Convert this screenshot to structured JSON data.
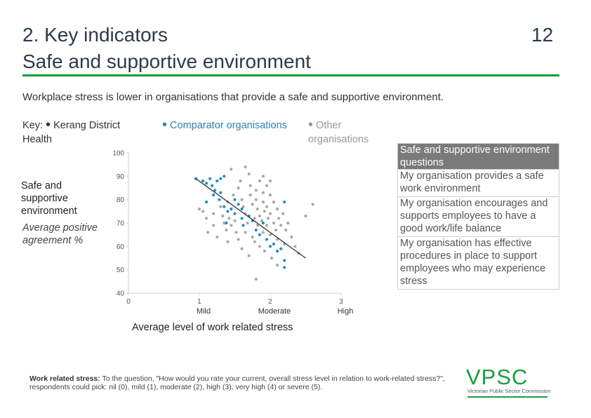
{
  "header": {
    "title_line1": "2. Key indicators",
    "title_line2": "Safe and supportive environment",
    "page_number": "12",
    "subtitle": "Workplace stress is lower in organisations that provide a safe and supportive environment."
  },
  "key": {
    "label": "Key:",
    "bullet": "•",
    "items": [
      {
        "text": "Kerang District Health",
        "color": "#333333"
      },
      {
        "text": "Comparator organisations",
        "color": "#2f7fb0"
      },
      {
        "text": "Other organisations",
        "color": "#999999"
      }
    ]
  },
  "y_axis_label": {
    "title": "Safe and supportive environment",
    "subtitle": "Average positive agreement %"
  },
  "x_axis_label": "Average level of work related stress",
  "questions": {
    "header": "Safe and supportive environment questions",
    "items": [
      "My organisation provides a safe work environment",
      "My organisation encourages and supports employees to have a good work/life balance",
      "My organisation has effective procedures in place to support employees who may experience stress"
    ]
  },
  "footnote": {
    "bold": "Work related stress:",
    "text": " To the question, \"How would you rate your current, overall stress level in relation to work-related stress?\", respondents could pick: nil (0), mild (1), moderate (2), high (3), very high (4) or severe (5)."
  },
  "logo": {
    "text": "VPSC",
    "caption": "Victorian Public Sector Commission",
    "color": "#1a9e3c"
  },
  "chart_data": {
    "type": "scatter",
    "xlim": [
      0,
      3
    ],
    "ylim": [
      40,
      100
    ],
    "x_ticks": [
      0,
      1,
      2,
      3
    ],
    "y_ticks": [
      40,
      50,
      60,
      70,
      80,
      90,
      100
    ],
    "x_category_labels": [
      {
        "x": 1,
        "label": "Mild"
      },
      {
        "x": 2,
        "label": "Moderate"
      },
      {
        "x": 3,
        "label": "High"
      }
    ],
    "grid": false,
    "trendline": {
      "x": [
        0.95,
        2.5
      ],
      "y": [
        89,
        55
      ],
      "color": "#333333"
    },
    "series": [
      {
        "color": "#1d8fc4",
        "points": [
          [
            0.95,
            89
          ],
          [
            1.05,
            88
          ],
          [
            1.1,
            87
          ],
          [
            1.15,
            89
          ],
          [
            1.18,
            86
          ],
          [
            1.22,
            84
          ],
          [
            1.25,
            88
          ],
          [
            1.3,
            89
          ],
          [
            1.35,
            90
          ],
          [
            1.3,
            83
          ],
          [
            1.1,
            79
          ],
          [
            1.2,
            82
          ],
          [
            1.28,
            80
          ],
          [
            1.35,
            77
          ],
          [
            1.4,
            75
          ],
          [
            1.45,
            76
          ],
          [
            1.5,
            74
          ],
          [
            1.38,
            70
          ],
          [
            1.55,
            78
          ],
          [
            1.6,
            72
          ],
          [
            1.62,
            69
          ],
          [
            1.7,
            73
          ],
          [
            1.75,
            71
          ],
          [
            1.8,
            67
          ],
          [
            1.85,
            65
          ],
          [
            1.9,
            70
          ],
          [
            1.95,
            63
          ],
          [
            2.0,
            60
          ],
          [
            2.05,
            61
          ],
          [
            2.1,
            58
          ],
          [
            2.15,
            59
          ],
          [
            2.2,
            54
          ],
          [
            2.2,
            51
          ],
          [
            2.2,
            79
          ],
          [
            1.5,
            80
          ],
          [
            1.6,
            76
          ]
        ]
      },
      {
        "color": "#a8a8a8",
        "points": [
          [
            1.0,
            76
          ],
          [
            1.05,
            75
          ],
          [
            1.1,
            72
          ],
          [
            1.12,
            66
          ],
          [
            1.2,
            74
          ],
          [
            1.2,
            69
          ],
          [
            1.3,
            77
          ],
          [
            1.33,
            73
          ],
          [
            1.35,
            70
          ],
          [
            1.38,
            67
          ],
          [
            1.4,
            79
          ],
          [
            1.42,
            72
          ],
          [
            1.45,
            69
          ],
          [
            1.48,
            82
          ],
          [
            1.5,
            71
          ],
          [
            1.52,
            66
          ],
          [
            1.55,
            85
          ],
          [
            1.58,
            88
          ],
          [
            1.6,
            80
          ],
          [
            1.62,
            77
          ],
          [
            1.65,
            74
          ],
          [
            1.65,
            66
          ],
          [
            1.68,
            70
          ],
          [
            1.7,
            91
          ],
          [
            1.72,
            86
          ],
          [
            1.72,
            82
          ],
          [
            1.75,
            78
          ],
          [
            1.75,
            64
          ],
          [
            1.78,
            72
          ],
          [
            1.78,
            62
          ],
          [
            1.8,
            84
          ],
          [
            1.8,
            80
          ],
          [
            1.82,
            76
          ],
          [
            1.82,
            69
          ],
          [
            1.85,
            88
          ],
          [
            1.85,
            73
          ],
          [
            1.85,
            60
          ],
          [
            1.88,
            71
          ],
          [
            1.9,
            83
          ],
          [
            1.9,
            79
          ],
          [
            1.9,
            66
          ],
          [
            1.92,
            75
          ],
          [
            1.92,
            58
          ],
          [
            1.95,
            86
          ],
          [
            1.95,
            77
          ],
          [
            1.95,
            69
          ],
          [
            1.97,
            72
          ],
          [
            2.0,
            82
          ],
          [
            2.0,
            74
          ],
          [
            2.0,
            65
          ],
          [
            2.02,
            55
          ],
          [
            2.05,
            79
          ],
          [
            2.05,
            70
          ],
          [
            2.08,
            67
          ],
          [
            2.1,
            76
          ],
          [
            2.1,
            63
          ],
          [
            2.12,
            72
          ],
          [
            2.15,
            69
          ],
          [
            2.18,
            74
          ],
          [
            2.2,
            61
          ],
          [
            2.22,
            67
          ],
          [
            2.25,
            70
          ],
          [
            2.3,
            64
          ],
          [
            2.35,
            60
          ],
          [
            2.4,
            57
          ],
          [
            2.5,
            73
          ],
          [
            2.6,
            78
          ],
          [
            1.55,
            63
          ],
          [
            1.6,
            59
          ],
          [
            1.7,
            56
          ],
          [
            1.8,
            46
          ],
          [
            1.45,
            93
          ],
          [
            1.65,
            94
          ],
          [
            1.9,
            90
          ],
          [
            2.0,
            88
          ],
          [
            1.4,
            62
          ],
          [
            1.25,
            64
          ],
          [
            2.1,
            52
          ]
        ]
      }
    ]
  }
}
